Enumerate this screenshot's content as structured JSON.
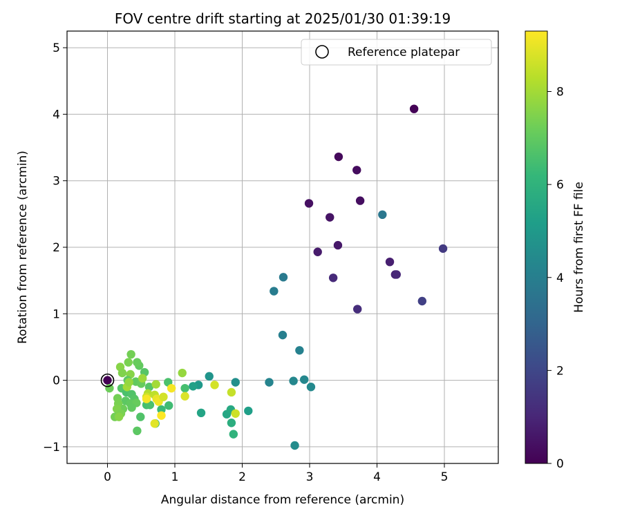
{
  "chart_data": {
    "type": "scatter",
    "title": "FOV centre drift starting at 2025/01/30 01:39:19",
    "xlabel": "Angular distance from reference (arcmin)",
    "ylabel": "Rotation from reference (arcmin)",
    "xlim": [
      -0.6,
      5.8
    ],
    "ylim": [
      -1.25,
      5.25
    ],
    "xticks": [
      0,
      1,
      2,
      3,
      4,
      5
    ],
    "xtick_labels": [
      "0",
      "1",
      "2",
      "3",
      "4",
      "5"
    ],
    "yticks": [
      -1,
      0,
      1,
      2,
      3,
      4,
      5
    ],
    "ytick_labels": [
      "−1",
      "0",
      "1",
      "2",
      "3",
      "4",
      "5"
    ],
    "grid": true,
    "legend": {
      "placement": "top-right",
      "entries": [
        "Reference platepar"
      ]
    },
    "reference_point": {
      "x": 0,
      "y": 0,
      "marker": "open-circle",
      "color": "#000000"
    },
    "colorbar": {
      "label": "Hours from first FF file",
      "range": [
        0,
        9.3
      ],
      "ticks": [
        0,
        2,
        4,
        6,
        8
      ],
      "tick_labels": [
        "0",
        "2",
        "4",
        "6",
        "8"
      ],
      "colormap": "viridis",
      "stops": [
        "#440154",
        "#482878",
        "#3e4989",
        "#31688e",
        "#26828e",
        "#1f9e89",
        "#35b779",
        "#6ece58",
        "#b5de2b",
        "#fde725"
      ]
    },
    "points": [
      {
        "x": 0.0,
        "y": 0.0,
        "c": 0.0
      },
      {
        "x": 4.55,
        "y": 4.08,
        "c": 0.05
      },
      {
        "x": 3.43,
        "y": 3.36,
        "c": 0.2
      },
      {
        "x": 3.7,
        "y": 3.16,
        "c": 0.3
      },
      {
        "x": 3.75,
        "y": 2.7,
        "c": 0.35
      },
      {
        "x": 2.99,
        "y": 2.66,
        "c": 0.4
      },
      {
        "x": 3.3,
        "y": 2.45,
        "c": 0.5
      },
      {
        "x": 3.42,
        "y": 2.03,
        "c": 0.6
      },
      {
        "x": 3.12,
        "y": 1.93,
        "c": 0.7
      },
      {
        "x": 4.19,
        "y": 1.78,
        "c": 0.8
      },
      {
        "x": 4.27,
        "y": 1.59,
        "c": 0.9
      },
      {
        "x": 4.29,
        "y": 1.59,
        "c": 1.0
      },
      {
        "x": 3.35,
        "y": 1.54,
        "c": 1.1
      },
      {
        "x": 3.71,
        "y": 1.07,
        "c": 1.2
      },
      {
        "x": 4.98,
        "y": 1.98,
        "c": 1.6
      },
      {
        "x": 4.67,
        "y": 1.19,
        "c": 1.8
      },
      {
        "x": 4.08,
        "y": 2.49,
        "c": 3.7
      },
      {
        "x": 2.61,
        "y": 1.55,
        "c": 3.8
      },
      {
        "x": 2.47,
        "y": 1.34,
        "c": 3.9
      },
      {
        "x": 2.6,
        "y": 0.68,
        "c": 4.0
      },
      {
        "x": 2.85,
        "y": 0.45,
        "c": 4.1
      },
      {
        "x": 2.4,
        "y": -0.03,
        "c": 4.2
      },
      {
        "x": 2.76,
        "y": -0.01,
        "c": 4.3
      },
      {
        "x": 2.92,
        "y": 0.01,
        "c": 4.3
      },
      {
        "x": 3.02,
        "y": -0.1,
        "c": 4.4
      },
      {
        "x": 2.78,
        "y": -0.98,
        "c": 4.5
      },
      {
        "x": 1.9,
        "y": -0.03,
        "c": 4.6
      },
      {
        "x": 1.51,
        "y": 0.06,
        "c": 4.8
      },
      {
        "x": 1.35,
        "y": -0.07,
        "c": 5.0
      },
      {
        "x": 1.27,
        "y": -0.09,
        "c": 5.3
      },
      {
        "x": 2.09,
        "y": -0.46,
        "c": 5.2
      },
      {
        "x": 1.39,
        "y": -0.49,
        "c": 5.4
      },
      {
        "x": 1.77,
        "y": -0.51,
        "c": 5.5
      },
      {
        "x": 1.83,
        "y": -0.44,
        "c": 5.6
      },
      {
        "x": 1.84,
        "y": -0.64,
        "c": 5.8
      },
      {
        "x": 1.87,
        "y": -0.81,
        "c": 6.0
      },
      {
        "x": 1.15,
        "y": -0.12,
        "c": 6.5
      },
      {
        "x": 0.9,
        "y": -0.03,
        "c": 6.6
      },
      {
        "x": 0.91,
        "y": -0.38,
        "c": 6.4
      },
      {
        "x": 0.8,
        "y": -0.44,
        "c": 6.3
      },
      {
        "x": 0.71,
        "y": -0.65,
        "c": 6.2
      },
      {
        "x": 0.49,
        "y": -0.55,
        "c": 6.7
      },
      {
        "x": 0.44,
        "y": -0.76,
        "c": 6.9
      },
      {
        "x": 0.62,
        "y": -0.1,
        "c": 6.8
      },
      {
        "x": 0.58,
        "y": -0.37,
        "c": 6.5
      },
      {
        "x": 0.63,
        "y": -0.37,
        "c": 6.6
      },
      {
        "x": 0.55,
        "y": 0.12,
        "c": 6.8
      },
      {
        "x": 0.47,
        "y": 0.22,
        "c": 7.0
      },
      {
        "x": 0.44,
        "y": 0.27,
        "c": 7.1
      },
      {
        "x": 0.35,
        "y": 0.39,
        "c": 7.3
      },
      {
        "x": 0.31,
        "y": 0.27,
        "c": 7.4
      },
      {
        "x": 0.19,
        "y": 0.2,
        "c": 7.6
      },
      {
        "x": 0.22,
        "y": 0.11,
        "c": 7.5
      },
      {
        "x": 0.34,
        "y": 0.09,
        "c": 7.6
      },
      {
        "x": 0.3,
        "y": 0.0,
        "c": 6.9
      },
      {
        "x": 0.42,
        "y": -0.02,
        "c": 7.0
      },
      {
        "x": 0.5,
        "y": -0.05,
        "c": 7.1
      },
      {
        "x": 0.21,
        "y": -0.12,
        "c": 6.8
      },
      {
        "x": 0.28,
        "y": -0.18,
        "c": 6.6
      },
      {
        "x": 0.36,
        "y": -0.21,
        "c": 6.7
      },
      {
        "x": 0.4,
        "y": -0.28,
        "c": 6.8
      },
      {
        "x": 0.27,
        "y": -0.31,
        "c": 6.9
      },
      {
        "x": 0.34,
        "y": -0.35,
        "c": 7.0
      },
      {
        "x": 0.43,
        "y": -0.34,
        "c": 7.1
      },
      {
        "x": 0.36,
        "y": -0.41,
        "c": 7.0
      },
      {
        "x": 0.23,
        "y": -0.43,
        "c": 7.2
      },
      {
        "x": 0.15,
        "y": -0.27,
        "c": 7.3
      },
      {
        "x": 0.16,
        "y": -0.35,
        "c": 7.4
      },
      {
        "x": 0.14,
        "y": -0.43,
        "c": 7.5
      },
      {
        "x": 0.2,
        "y": -0.5,
        "c": 7.4
      },
      {
        "x": 0.11,
        "y": -0.55,
        "c": 7.3
      },
      {
        "x": 0.17,
        "y": -0.55,
        "c": 7.6
      },
      {
        "x": 0.03,
        "y": -0.12,
        "c": 7.2
      },
      {
        "x": 0.29,
        "y": -0.1,
        "c": 8.0
      },
      {
        "x": 0.32,
        "y": -0.03,
        "c": 7.8
      },
      {
        "x": 0.52,
        "y": 0.03,
        "c": 7.9
      },
      {
        "x": 0.6,
        "y": -0.2,
        "c": 8.2
      },
      {
        "x": 0.58,
        "y": -0.25,
        "c": 8.6
      },
      {
        "x": 0.58,
        "y": -0.28,
        "c": 9.2
      },
      {
        "x": 0.7,
        "y": -0.22,
        "c": 8.4
      },
      {
        "x": 0.73,
        "y": -0.28,
        "c": 9.0
      },
      {
        "x": 0.76,
        "y": -0.32,
        "c": 9.1
      },
      {
        "x": 0.83,
        "y": -0.25,
        "c": 8.7
      },
      {
        "x": 0.72,
        "y": -0.06,
        "c": 8.0
      },
      {
        "x": 0.95,
        "y": -0.12,
        "c": 9.2
      },
      {
        "x": 0.8,
        "y": -0.53,
        "c": 9.3
      },
      {
        "x": 0.7,
        "y": -0.65,
        "c": 8.9
      },
      {
        "x": 1.11,
        "y": 0.11,
        "c": 7.8
      },
      {
        "x": 1.15,
        "y": -0.24,
        "c": 8.8
      },
      {
        "x": 1.59,
        "y": -0.07,
        "c": 8.7
      },
      {
        "x": 1.84,
        "y": -0.18,
        "c": 8.5
      },
      {
        "x": 1.9,
        "y": -0.5,
        "c": 8.6
      }
    ]
  }
}
